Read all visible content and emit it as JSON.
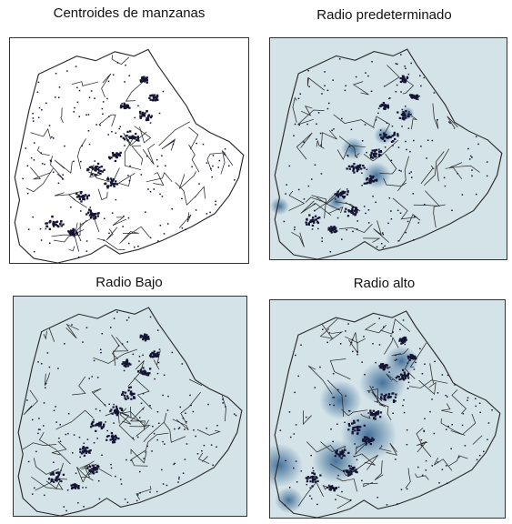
{
  "panels": [
    {
      "title": "Centroides de manzanas",
      "background": "#ffffff",
      "heat": "none"
    },
    {
      "title": "Radio predeterminado",
      "background": "#d3e3e8",
      "heat": "default"
    },
    {
      "title": "Radio Bajo",
      "background": "#d3e3e8",
      "heat": "low"
    },
    {
      "title": "Radio alto",
      "background": "#d3e3e8",
      "heat": "high"
    }
  ],
  "colors": {
    "boundary": "#2b2b2b",
    "block_centroid": "#141433",
    "heat": "#2e5f8e",
    "panel_border": "#333333"
  }
}
